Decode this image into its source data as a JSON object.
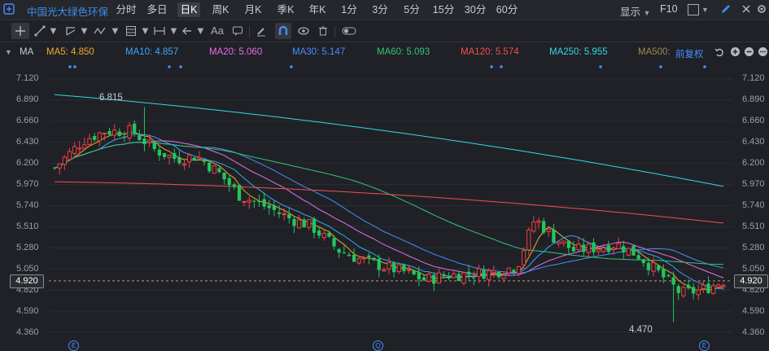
{
  "topbar": {
    "symbol": "中国光大绿色环保",
    "timeframes": [
      "分时",
      "多日",
      "日K",
      "周K",
      "月K",
      "季K",
      "年K",
      "1分",
      "3分",
      "5分",
      "15分",
      "30分",
      "60分"
    ],
    "active": "日K",
    "display": "显示",
    "f10": "F10"
  },
  "toolbar": {
    "font_label": "Aa",
    "icons": [
      "crosshair-icon",
      "pen-line-icon",
      "chevron-down-icon",
      "trend-tool-icon",
      "chevron-down-icon",
      "wave-tool-icon",
      "chevron-down-icon",
      "level-tool-icon",
      "chevron-down-icon",
      "range-tool-icon",
      "chevron-down-icon",
      "arrow-left-icon",
      "chevron-down-icon",
      "font-icon",
      "comment-icon",
      "eraser-icon",
      "magnet-icon",
      "eye-icon",
      "trash-icon",
      "toggle-icon"
    ]
  },
  "ma_bar": {
    "label": "MA",
    "items": [
      {
        "text": "MA5: 4.850",
        "color": "#f0a830"
      },
      {
        "text": "MA10: 4.857",
        "color": "#3aa7ff"
      },
      {
        "text": "MA20: 5.060",
        "color": "#e86ee8"
      },
      {
        "text": "MA30: 5.147",
        "color": "#4a8cff"
      },
      {
        "text": "MA60: 5.093",
        "color": "#36c27a"
      },
      {
        "text": "MA120: 5.574",
        "color": "#f05050"
      },
      {
        "text": "MA250: 5.955",
        "color": "#36d6e6"
      },
      {
        "text": "MA500:",
        "color": "#a08850"
      }
    ],
    "adjust": "前复权"
  },
  "axis": {
    "ticks": [
      "7.120",
      "6.890",
      "6.660",
      "6.430",
      "6.200",
      "5.970",
      "5.740",
      "5.510",
      "5.280",
      "5.050",
      "4.820",
      "4.590",
      "4.360"
    ],
    "current": "4.920"
  },
  "annotations": {
    "high": "6.815",
    "low": "4.470"
  },
  "colors": {
    "up": "#ef4040",
    "down": "#22c55e",
    "bg": "#1f2126"
  }
}
